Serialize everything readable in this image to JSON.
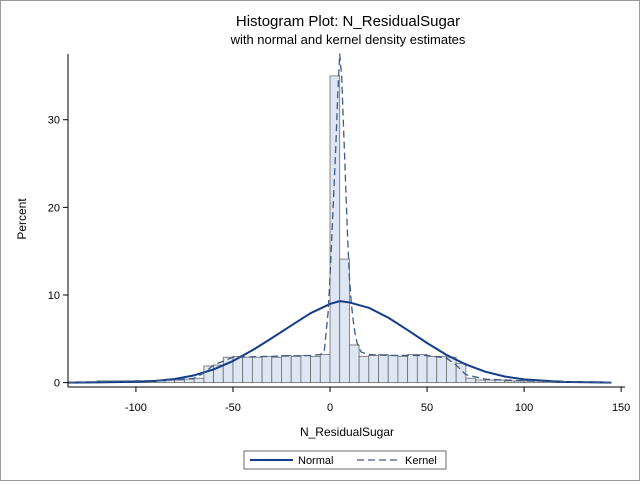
{
  "chart_data": {
    "type": "histogram",
    "title": "Histogram Plot: N_ResidualSugar",
    "subtitle": "with normal and kernel density estimates",
    "xlabel": "N_ResidualSugar",
    "ylabel": "Percent",
    "xlim": [
      -135,
      152
    ],
    "ylim": [
      -0.5,
      37.5
    ],
    "x_ticks": [
      -100,
      -50,
      0,
      50,
      100,
      150
    ],
    "y_ticks": [
      0,
      10,
      20,
      30
    ],
    "bin_width": 5,
    "bins": [
      {
        "x0": -130,
        "value": 0.1
      },
      {
        "x0": -125,
        "value": 0.1
      },
      {
        "x0": -120,
        "value": 0.2
      },
      {
        "x0": -115,
        "value": 0.2
      },
      {
        "x0": -110,
        "value": 0.2
      },
      {
        "x0": -105,
        "value": 0.2
      },
      {
        "x0": -100,
        "value": 0.2
      },
      {
        "x0": -95,
        "value": 0.2
      },
      {
        "x0": -90,
        "value": 0.2
      },
      {
        "x0": -85,
        "value": 0.3
      },
      {
        "x0": -80,
        "value": 0.3
      },
      {
        "x0": -75,
        "value": 0.4
      },
      {
        "x0": -70,
        "value": 0.5
      },
      {
        "x0": -65,
        "value": 1.9
      },
      {
        "x0": -60,
        "value": 2.0
      },
      {
        "x0": -55,
        "value": 2.9
      },
      {
        "x0": -50,
        "value": 3.0
      },
      {
        "x0": -45,
        "value": 2.9
      },
      {
        "x0": -40,
        "value": 2.9
      },
      {
        "x0": -35,
        "value": 3.0
      },
      {
        "x0": -30,
        "value": 2.9
      },
      {
        "x0": -25,
        "value": 3.1
      },
      {
        "x0": -20,
        "value": 3.0
      },
      {
        "x0": -15,
        "value": 3.1
      },
      {
        "x0": -10,
        "value": 3.0
      },
      {
        "x0": -5,
        "value": 3.2
      },
      {
        "x0": 0,
        "value": 35.0
      },
      {
        "x0": 5,
        "value": 14.1
      },
      {
        "x0": 10,
        "value": 4.3
      },
      {
        "x0": 15,
        "value": 3.0
      },
      {
        "x0": 20,
        "value": 3.1
      },
      {
        "x0": 25,
        "value": 3.2
      },
      {
        "x0": 30,
        "value": 3.1
      },
      {
        "x0": 35,
        "value": 3.0
      },
      {
        "x0": 40,
        "value": 3.2
      },
      {
        "x0": 45,
        "value": 3.2
      },
      {
        "x0": 50,
        "value": 3.0
      },
      {
        "x0": 55,
        "value": 3.0
      },
      {
        "x0": 60,
        "value": 2.9
      },
      {
        "x0": 65,
        "value": 2.2
      },
      {
        "x0": 70,
        "value": 0.5
      },
      {
        "x0": 75,
        "value": 0.3
      },
      {
        "x0": 80,
        "value": 0.3
      },
      {
        "x0": 85,
        "value": 0.3
      },
      {
        "x0": 90,
        "value": 0.2
      },
      {
        "x0": 95,
        "value": 0.2
      },
      {
        "x0": 100,
        "value": 0.2
      },
      {
        "x0": 105,
        "value": 0.2
      },
      {
        "x0": 110,
        "value": 0.2
      },
      {
        "x0": 115,
        "value": 0.2
      },
      {
        "x0": 120,
        "value": 0.1
      },
      {
        "x0": 125,
        "value": 0.1
      },
      {
        "x0": 130,
        "value": 0.1
      },
      {
        "x0": 135,
        "value": 0.1
      }
    ],
    "series": [
      {
        "name": "Normal",
        "style": "solid",
        "x": [
          -135,
          -120,
          -100,
          -90,
          -80,
          -70,
          -60,
          -50,
          -40,
          -30,
          -20,
          -10,
          0,
          5,
          10,
          20,
          30,
          40,
          50,
          60,
          70,
          80,
          90,
          100,
          120,
          145
        ],
        "values": [
          0.0,
          0.03,
          0.1,
          0.2,
          0.42,
          0.83,
          1.5,
          2.46,
          3.69,
          5.08,
          6.51,
          7.92,
          8.98,
          9.3,
          9.15,
          8.54,
          7.42,
          6.0,
          4.52,
          3.17,
          2.07,
          1.25,
          0.7,
          0.37,
          0.08,
          0.0
        ]
      },
      {
        "name": "Kernel",
        "style": "dashed",
        "x": [
          -135,
          -100,
          -80,
          -70,
          -65,
          -60,
          -50,
          -10,
          -5,
          -3,
          -1,
          0,
          1,
          2,
          3,
          4,
          5,
          6,
          7,
          8,
          9,
          10,
          11,
          12,
          13,
          14,
          16,
          20,
          30,
          50,
          60,
          65,
          70,
          80,
          100,
          145
        ],
        "values": [
          0.0,
          0.2,
          0.3,
          0.5,
          1.1,
          2.0,
          2.9,
          3.1,
          3.2,
          3.5,
          8.0,
          12.0,
          17.0,
          22.0,
          27.0,
          33.0,
          37.5,
          35.0,
          29.0,
          23.0,
          17.0,
          12.0,
          9.0,
          7.0,
          5.5,
          4.5,
          3.5,
          3.2,
          3.1,
          3.1,
          2.8,
          2.0,
          0.9,
          0.4,
          0.2,
          0.0
        ]
      }
    ],
    "legend": {
      "position": "bottom",
      "entries": [
        "Normal",
        "Kernel"
      ]
    },
    "grid": false,
    "colors": {
      "bar_fill": "#dde6f2",
      "bar_stroke": "#6b6b6b",
      "normal": "#123c86",
      "kernel": "#3d5a8a"
    }
  }
}
